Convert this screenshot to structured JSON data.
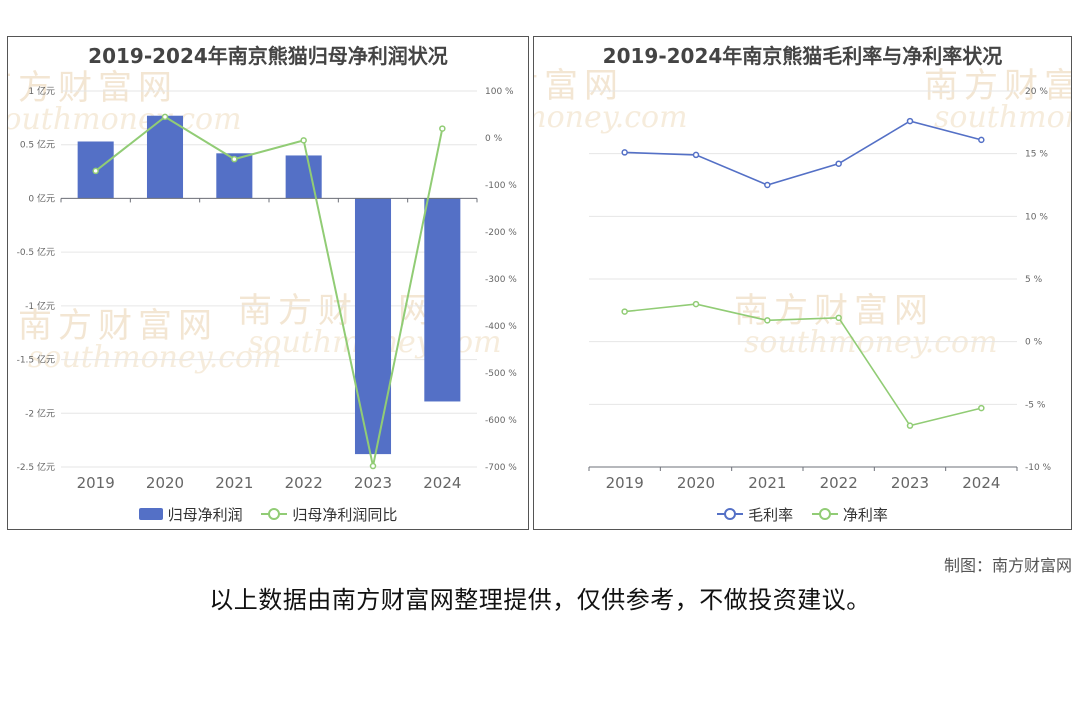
{
  "watermark": {
    "cn": "南方财富网",
    "en": "southmoney.com"
  },
  "chart_data": [
    {
      "type": "bar",
      "title": "2019-2024年南京熊猫归母净利润状况",
      "categories": [
        "2019",
        "2020",
        "2021",
        "2022",
        "2023",
        "2024"
      ],
      "series": [
        {
          "name": "归母净利润",
          "type": "bar",
          "axis": "left",
          "color": "#5470c6",
          "values": [
            0.53,
            0.77,
            0.42,
            0.4,
            -2.38,
            -1.89
          ]
        },
        {
          "name": "归母净利润同比",
          "type": "line",
          "axis": "right",
          "color": "#91cc75",
          "values": [
            -70,
            45,
            -45,
            -5,
            -698,
            20
          ]
        }
      ],
      "left_axis": {
        "min": -2.5,
        "max": 1,
        "ticks": [
          1,
          0.5,
          0,
          -0.5,
          -1,
          -1.5,
          -2,
          -2.5
        ],
        "tick_labels": [
          "1 亿元",
          "0.5 亿元",
          "0 亿元",
          "-0.5 亿元",
          "-1 亿元",
          "-1.5 亿元",
          "-2 亿元",
          "-2.5 亿元"
        ]
      },
      "right_axis": {
        "min": -700,
        "max": 100,
        "ticks": [
          100,
          0,
          -100,
          -200,
          -300,
          -400,
          -500,
          -600,
          -700
        ],
        "tick_labels": [
          "100 %",
          "0 %",
          "-100 %",
          "-200 %",
          "-300 %",
          "-400 %",
          "-500 %",
          "-600 %",
          "-700 %"
        ]
      },
      "grid": true,
      "legend_position": "bottom"
    },
    {
      "type": "line",
      "title": "2019-2024年南京熊猫毛利率与净利率状况",
      "categories": [
        "2019",
        "2020",
        "2021",
        "2022",
        "2023",
        "2024"
      ],
      "series": [
        {
          "name": "毛利率",
          "color": "#5470c6",
          "values": [
            15.1,
            14.9,
            12.5,
            14.2,
            17.6,
            16.1
          ]
        },
        {
          "name": "净利率",
          "color": "#91cc75",
          "values": [
            2.4,
            3.0,
            1.7,
            1.9,
            -6.7,
            -5.3
          ]
        }
      ],
      "right_axis": {
        "min": -10,
        "max": 20,
        "ticks": [
          20,
          15,
          10,
          5,
          0,
          -5,
          -10
        ],
        "tick_labels": [
          "20 %",
          "15 %",
          "10 %",
          "5 %",
          "0 %",
          "-5 %",
          "-10 %"
        ]
      },
      "grid": true,
      "legend_position": "bottom"
    }
  ],
  "credit": "制图：南方财富网",
  "footer": "以上数据由南方财富网整理提供，仅供参考，不做投资建议。"
}
